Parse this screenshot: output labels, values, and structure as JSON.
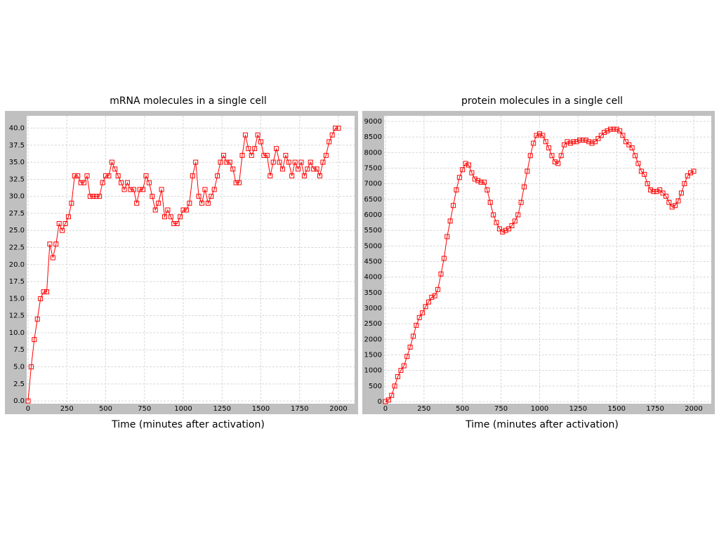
{
  "chart_data": [
    {
      "type": "line",
      "title": "mRNA molecules in a single cell",
      "x_label": "Time (minutes after activation)",
      "x": [
        0,
        20,
        40,
        60,
        80,
        100,
        120,
        140,
        160,
        180,
        200,
        220,
        240,
        260,
        280,
        300,
        320,
        340,
        360,
        380,
        400,
        420,
        440,
        460,
        480,
        500,
        520,
        540,
        560,
        580,
        600,
        620,
        640,
        660,
        680,
        700,
        720,
        740,
        760,
        780,
        800,
        820,
        840,
        860,
        880,
        900,
        920,
        940,
        960,
        980,
        1000,
        1020,
        1040,
        1060,
        1080,
        1100,
        1120,
        1140,
        1160,
        1180,
        1200,
        1220,
        1240,
        1260,
        1280,
        1300,
        1320,
        1340,
        1360,
        1380,
        1400,
        1420,
        1440,
        1460,
        1480,
        1500,
        1520,
        1540,
        1560,
        1580,
        1600,
        1620,
        1640,
        1660,
        1680,
        1700,
        1720,
        1740,
        1760,
        1780,
        1800,
        1820,
        1840,
        1860,
        1880,
        1900,
        1920,
        1940,
        1960,
        1980,
        2000
      ],
      "values": [
        0,
        5,
        9,
        12,
        15,
        16,
        16,
        23,
        21,
        23,
        26,
        25,
        26,
        27,
        29,
        33,
        33,
        32,
        32,
        33,
        30,
        30,
        30,
        30,
        32,
        33,
        33,
        35,
        34,
        33,
        32,
        31,
        32,
        31,
        31,
        29,
        31,
        31,
        33,
        32,
        30,
        28,
        29,
        31,
        27,
        28,
        27,
        26,
        26,
        27,
        28,
        28,
        29,
        33,
        35,
        30,
        29,
        31,
        29,
        30,
        31,
        33,
        35,
        36,
        35,
        35,
        34,
        32,
        32,
        36,
        39,
        37,
        36,
        37,
        39,
        38,
        36,
        36,
        33,
        35,
        37,
        35,
        34,
        36,
        35,
        33,
        35,
        34,
        35,
        33,
        34,
        35,
        34,
        34,
        33,
        35,
        36,
        38,
        39,
        40,
        40
      ],
      "color": "#ff0000",
      "xlim": [
        -9,
        2104
      ],
      "ylim": [
        -0.4,
        41.8
      ],
      "xticks": [
        0,
        250,
        500,
        750,
        1000,
        1250,
        1500,
        1750,
        2000
      ],
      "yticks": [
        {
          "value": 0,
          "label": "0.0"
        },
        2.5,
        {
          "value": 5,
          "label": "5.0"
        },
        7.5,
        {
          "value": 10,
          "label": "10.0"
        },
        12.5,
        {
          "value": 15,
          "label": "15.0"
        },
        17.5,
        {
          "value": 20,
          "label": "20.0"
        },
        22.5,
        {
          "value": 25,
          "label": "25.0"
        },
        27.5,
        {
          "value": 30,
          "label": "30.0"
        },
        32.5,
        {
          "value": 35,
          "label": "35.0"
        },
        37.5,
        {
          "value": 40,
          "label": "40.0"
        }
      ],
      "grid": true
    },
    {
      "type": "line",
      "title": "protein molecules in a single cell",
      "x_label": "Time (minutes after activation)",
      "x": [
        0,
        20,
        40,
        60,
        80,
        100,
        120,
        140,
        160,
        180,
        200,
        220,
        240,
        260,
        280,
        300,
        320,
        340,
        360,
        380,
        400,
        420,
        440,
        460,
        480,
        500,
        520,
        540,
        560,
        580,
        600,
        620,
        640,
        660,
        680,
        700,
        720,
        740,
        760,
        780,
        800,
        820,
        840,
        860,
        880,
        900,
        920,
        940,
        960,
        980,
        1000,
        1020,
        1040,
        1060,
        1080,
        1100,
        1120,
        1140,
        1160,
        1180,
        1200,
        1220,
        1240,
        1260,
        1280,
        1300,
        1320,
        1340,
        1360,
        1380,
        1400,
        1420,
        1440,
        1460,
        1480,
        1500,
        1520,
        1540,
        1560,
        1580,
        1600,
        1620,
        1640,
        1660,
        1680,
        1700,
        1720,
        1740,
        1760,
        1780,
        1800,
        1820,
        1840,
        1860,
        1880,
        1900,
        1920,
        1940,
        1960,
        1980,
        2000
      ],
      "values": [
        0,
        50,
        200,
        500,
        800,
        1000,
        1150,
        1450,
        1750,
        2100,
        2450,
        2700,
        2850,
        3050,
        3200,
        3350,
        3400,
        3600,
        4100,
        4600,
        5300,
        5800,
        6300,
        6800,
        7200,
        7450,
        7650,
        7600,
        7350,
        7150,
        7100,
        7050,
        7050,
        6800,
        6400,
        6000,
        5750,
        5550,
        5450,
        5500,
        5550,
        5650,
        5800,
        6000,
        6400,
        6900,
        7400,
        7900,
        8300,
        8550,
        8600,
        8550,
        8350,
        8150,
        7900,
        7700,
        7650,
        7900,
        8250,
        8350,
        8300,
        8350,
        8350,
        8400,
        8400,
        8400,
        8350,
        8300,
        8350,
        8450,
        8550,
        8650,
        8700,
        8750,
        8750,
        8750,
        8700,
        8550,
        8350,
        8250,
        8150,
        7900,
        7650,
        7400,
        7300,
        7000,
        6800,
        6750,
        6750,
        6800,
        6700,
        6600,
        6400,
        6250,
        6300,
        6450,
        6700,
        7000,
        7250,
        7350,
        7400
      ],
      "color": "#ff0000",
      "xlim": [
        -9,
        2114
      ],
      "ylim": [
        -68,
        9180
      ],
      "xticks": [
        0,
        250,
        500,
        750,
        1000,
        1250,
        1500,
        1750,
        2000
      ],
      "yticks": [
        0,
        500,
        1000,
        1500,
        2000,
        2500,
        3000,
        3500,
        4000,
        4500,
        5000,
        5500,
        6000,
        6500,
        7000,
        7500,
        8000,
        8500,
        9000
      ],
      "grid": true
    }
  ]
}
